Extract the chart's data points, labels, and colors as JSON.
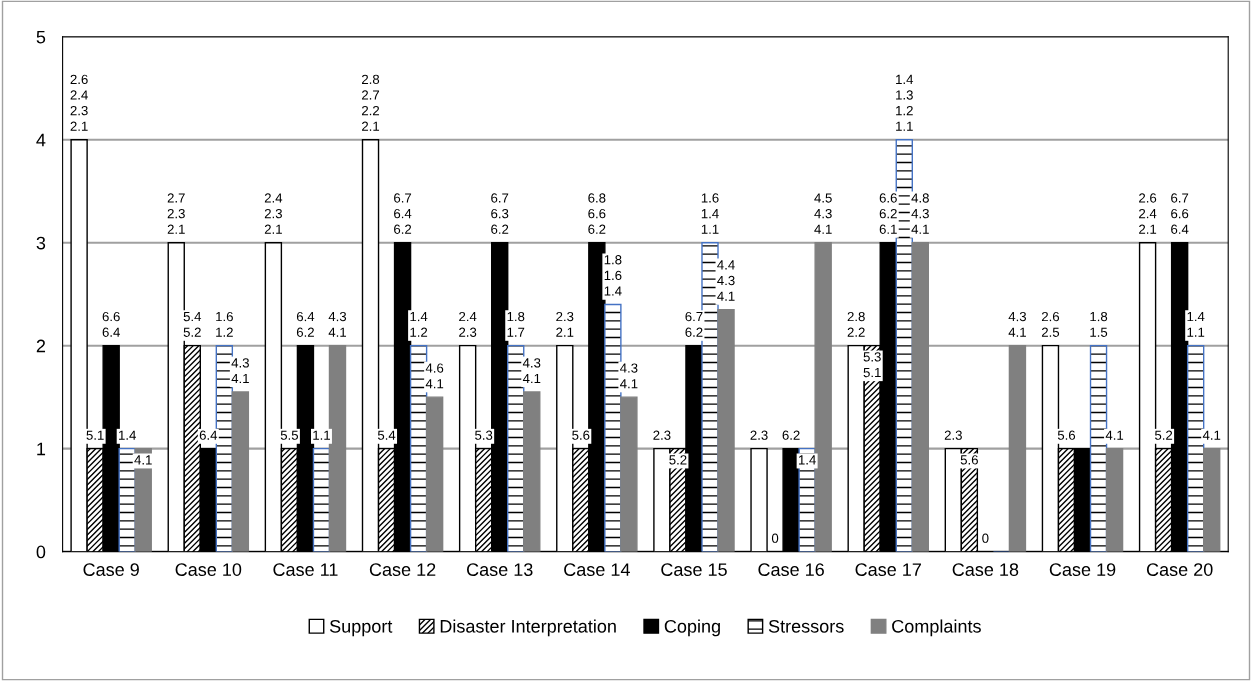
{
  "chart_data": {
    "type": "bar",
    "categories": [
      "Case 9",
      "Case 10",
      "Case 11",
      "Case 12",
      "Case 13",
      "Case 14",
      "Case 15",
      "Case 16",
      "Case 17",
      "Case 18",
      "Case 19",
      "Case 20"
    ],
    "series": [
      {
        "name": "Support",
        "color": "#ffffff",
        "values": [
          4,
          3,
          3,
          4,
          2,
          2,
          1,
          1,
          2,
          1,
          2,
          3
        ]
      },
      {
        "name": "Disaster Interpretation",
        "color": "#000000",
        "values": [
          1,
          2,
          1,
          1,
          1,
          1,
          1,
          0,
          2,
          1,
          1,
          1
        ]
      },
      {
        "name": "Coping",
        "color": "#000000",
        "values": [
          2,
          1,
          2,
          3,
          3,
          3,
          2,
          1,
          3,
          0,
          1,
          3
        ]
      },
      {
        "name": "Stressors",
        "color": "#4472c4",
        "values": [
          1,
          2,
          1,
          2,
          2,
          2.4,
          3,
          1,
          4,
          0,
          2,
          2
        ]
      },
      {
        "name": "Complaints",
        "color": "#808080",
        "values": [
          1,
          1.55,
          2,
          1.5,
          1.55,
          1.5,
          2.35,
          3,
          3,
          2,
          1,
          1
        ]
      }
    ],
    "annotations": [
      "2.6\n2.4\n2.3\n2.1",
      "2.7\n2.3\n2.1",
      "2.4\n2.3\n2.1",
      "2.8\n2.7\n2.2\n2.1",
      "2.4\n2.3",
      "2.3\n2.1",
      "2.3",
      "2.3",
      "2.8\n2.2",
      "2.3",
      "2.6\n2.5",
      "2.6\n2.4\n2.1",
      "5.1",
      "5.4\n5.2",
      "5.5",
      "5.4",
      "5.3",
      "5.6",
      "5.2",
      "0",
      "5.3\n5.1",
      "5.6",
      "5.6",
      "5.2",
      "6.6\n6.4",
      "6.4",
      "6.4\n6.2",
      "6.7\n6.4\n6.2",
      "6.7\n6.3\n6.2",
      "6.8\n6.6\n6.2",
      "6.7\n6.2",
      "6.2",
      "6.6\n6.2\n6.1",
      "0",
      null,
      "6.7\n6.6\n6.4",
      "1.4",
      "1.6\n1.2",
      "1.1",
      "1.4\n1.2",
      "1.8\n1.7",
      "1.8\n1.6\n1.4",
      "1.6\n1.4\n1.1",
      "1.4",
      "1.4\n1.3\n1.2\n1.1",
      null,
      "1.8\n1.5",
      "1.4\n1.1",
      "4.1",
      "4.3\n4.1",
      "4.3\n4.1",
      "4.6\n4.1",
      "4.3\n4.1",
      "4.3\n4.1",
      "4.4\n4.3\n4.1",
      "4.5\n4.3\n4.1",
      "4.8\n4.3\n4.1",
      "4.3\n4.1",
      "4.1",
      "4.1"
    ],
    "ylim": [
      0,
      5
    ],
    "yticks": [
      0,
      1,
      2,
      3,
      4,
      5
    ],
    "grid": "y",
    "legend": "bottom"
  }
}
